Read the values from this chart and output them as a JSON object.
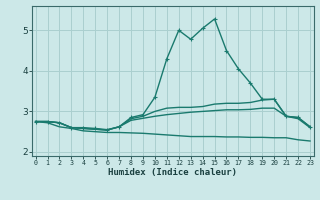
{
  "xlabel": "Humidex (Indice chaleur)",
  "x": [
    0,
    1,
    2,
    3,
    4,
    5,
    6,
    7,
    8,
    9,
    10,
    11,
    12,
    13,
    14,
    15,
    16,
    17,
    18,
    19,
    20,
    21,
    22,
    23
  ],
  "line1": [
    2.75,
    2.75,
    2.72,
    2.6,
    2.6,
    2.58,
    2.55,
    2.62,
    2.85,
    2.92,
    3.35,
    4.3,
    5.0,
    4.78,
    5.05,
    5.28,
    4.5,
    4.05,
    3.7,
    3.3,
    3.3,
    2.88,
    2.85,
    2.62
  ],
  "line2": [
    2.75,
    2.75,
    2.72,
    2.6,
    2.58,
    2.56,
    2.54,
    2.62,
    2.82,
    2.88,
    3.0,
    3.08,
    3.1,
    3.1,
    3.12,
    3.18,
    3.2,
    3.2,
    3.22,
    3.28,
    3.3,
    2.88,
    2.85,
    2.62
  ],
  "line3": [
    2.75,
    2.75,
    2.72,
    2.6,
    2.58,
    2.56,
    2.54,
    2.62,
    2.78,
    2.83,
    2.88,
    2.92,
    2.95,
    2.98,
    3.0,
    3.02,
    3.04,
    3.04,
    3.05,
    3.08,
    3.08,
    2.88,
    2.82,
    2.6
  ],
  "line4": [
    2.75,
    2.72,
    2.62,
    2.58,
    2.52,
    2.5,
    2.48,
    2.48,
    2.47,
    2.46,
    2.44,
    2.42,
    2.4,
    2.38,
    2.38,
    2.38,
    2.37,
    2.37,
    2.36,
    2.36,
    2.35,
    2.35,
    2.3,
    2.27
  ],
  "color": "#1a7a6e",
  "background": "#cce8e8",
  "grid_color": "#aacfcf",
  "ylim": [
    1.9,
    5.6
  ],
  "yticks": [
    2,
    3,
    4,
    5
  ],
  "xticks": [
    0,
    1,
    2,
    3,
    4,
    5,
    6,
    7,
    8,
    9,
    10,
    11,
    12,
    13,
    14,
    15,
    16,
    17,
    18,
    19,
    20,
    21,
    22,
    23
  ],
  "xticklabels": [
    "0",
    "1",
    "2",
    "3",
    "4",
    "5",
    "6",
    "7",
    "8",
    "9",
    "10",
    "11",
    "12",
    "13",
    "14",
    "15",
    "16",
    "17",
    "18",
    "19",
    "20",
    "21",
    "22",
    "23"
  ]
}
